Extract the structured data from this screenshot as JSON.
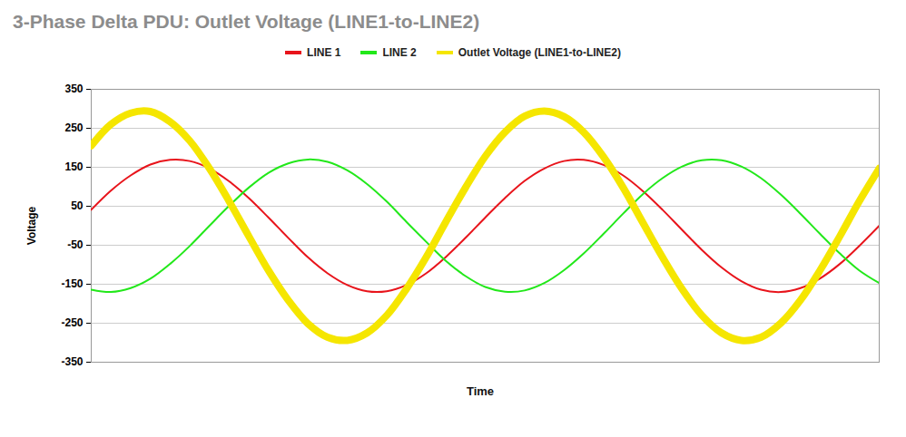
{
  "chart_data": {
    "type": "line",
    "title": "3-Phase Delta PDU: Outlet Voltage (LINE1-to-LINE2)",
    "x_label": "Time",
    "y_label": "Voltage",
    "x": [
      0,
      1,
      2,
      3,
      4,
      5,
      6,
      7,
      8,
      9,
      10,
      11,
      12,
      13,
      14,
      15,
      16,
      17,
      18,
      19,
      20,
      21,
      22,
      23,
      24,
      25,
      26,
      27,
      28,
      29,
      30,
      31,
      32,
      33,
      34,
      35,
      36,
      37,
      38,
      39,
      40
    ],
    "xlim": [
      0,
      40
    ],
    "ylim": [
      -350,
      350
    ],
    "yticks": [
      -350,
      -250,
      -150,
      -50,
      50,
      150,
      250,
      350
    ],
    "grid": true,
    "legend": "top",
    "tick_labels": "y",
    "series": [
      {
        "name": "LINE 1",
        "color": "#e8141b",
        "values": [
          41,
          90,
          129,
          157,
          169,
          166,
          147,
          114,
          71,
          21,
          -31,
          -81,
          -122,
          -152,
          -168,
          -168,
          -152,
          -122,
          -80,
          -31,
          21,
          71,
          115,
          147,
          166,
          169,
          156,
          129,
          89,
          41,
          -11,
          -62,
          -107,
          -142,
          -164,
          -170,
          -160,
          -135,
          -98,
          -51,
          0
        ]
      },
      {
        "name": "LINE 2",
        "color": "#22e81a",
        "values": [
          -164,
          -170,
          -160,
          -136,
          -98,
          -52,
          0,
          51,
          98,
          136,
          160,
          170,
          164,
          142,
          107,
          62,
          10,
          -41,
          -90,
          -129,
          -157,
          -169,
          -166,
          -147,
          -114,
          -71,
          -21,
          31,
          81,
          122,
          152,
          168,
          168,
          152,
          122,
          80,
          31,
          -21,
          -71,
          -115,
          -147
        ]
      },
      {
        "name": "Outlet Voltage (LINE1-to-LINE2)",
        "color": "#f5e600",
        "values": [
          205,
          260,
          289,
          293,
          267,
          218,
          147,
          63,
          -27,
          -115,
          -191,
          -251,
          -286,
          -294,
          -275,
          -230,
          -162,
          -81,
          10,
          98,
          178,
          240,
          281,
          294,
          280,
          240,
          177,
          98,
          8,
          -81,
          -163,
          -230,
          -275,
          -294,
          -286,
          -250,
          -191,
          -114,
          -27,
          64,
          147
        ]
      }
    ]
  }
}
